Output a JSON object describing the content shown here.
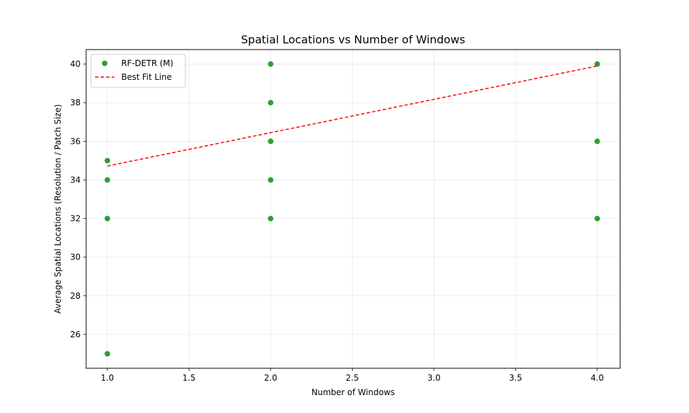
{
  "chart_data": {
    "type": "scatter",
    "title": "Spatial Locations vs Number of Windows",
    "xlabel": "Number of Windows",
    "ylabel": "Average Spatial Locations (Resolution / Patch Size)",
    "xlim": [
      0.87,
      4.14
    ],
    "ylim": [
      24.25,
      40.75
    ],
    "xticks": [
      1.0,
      1.5,
      2.0,
      2.5,
      3.0,
      3.5,
      4.0
    ],
    "xtick_labels": [
      "1.0",
      "1.5",
      "2.0",
      "2.5",
      "3.0",
      "3.5",
      "4.0"
    ],
    "yticks": [
      26,
      28,
      30,
      32,
      34,
      36,
      38,
      40
    ],
    "ytick_labels": [
      "26",
      "28",
      "30",
      "32",
      "34",
      "36",
      "38",
      "40"
    ],
    "grid": true,
    "legend_position": "top-left",
    "series": [
      {
        "name": "RF-DETR (M)",
        "kind": "scatter",
        "color": "#2ca02c",
        "points": [
          {
            "x": 1,
            "y": 25
          },
          {
            "x": 1,
            "y": 32
          },
          {
            "x": 1,
            "y": 34
          },
          {
            "x": 1,
            "y": 35
          },
          {
            "x": 2,
            "y": 32
          },
          {
            "x": 2,
            "y": 34
          },
          {
            "x": 2,
            "y": 36
          },
          {
            "x": 2,
            "y": 38
          },
          {
            "x": 2,
            "y": 40
          },
          {
            "x": 4,
            "y": 32
          },
          {
            "x": 4,
            "y": 36
          },
          {
            "x": 4,
            "y": 40
          }
        ]
      },
      {
        "name": "Best Fit Line",
        "kind": "line",
        "style": "dashed",
        "color": "#ff0000",
        "points": [
          {
            "x": 1,
            "y": 34.72
          },
          {
            "x": 4,
            "y": 39.9
          }
        ]
      }
    ]
  }
}
